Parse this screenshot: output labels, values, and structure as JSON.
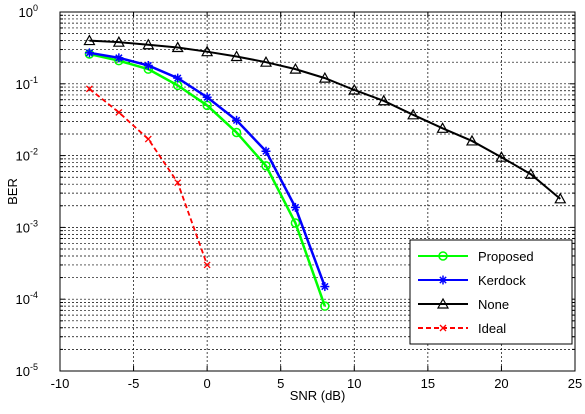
{
  "chart_data": {
    "type": "line",
    "title": "",
    "xlabel": "SNR (dB)",
    "ylabel": "BER",
    "xlim": [
      -10,
      25
    ],
    "ylim": [
      1e-05,
      1
    ],
    "yscale": "log",
    "grid": "on",
    "legend_position": "bottom-right",
    "x_ticks": [
      -10,
      -5,
      0,
      5,
      10,
      15,
      20,
      25
    ],
    "y_ticks": [
      {
        "value": 1,
        "base": "10",
        "exp": "0"
      },
      {
        "value": 0.1,
        "base": "10",
        "exp": "-1"
      },
      {
        "value": 0.01,
        "base": "10",
        "exp": "-2"
      },
      {
        "value": 0.001,
        "base": "10",
        "exp": "-3"
      },
      {
        "value": 0.0001,
        "base": "10",
        "exp": "-4"
      },
      {
        "value": 1e-05,
        "base": "10",
        "exp": "-5"
      }
    ],
    "series": [
      {
        "name": "Proposed",
        "color": "#00ff00",
        "line_style": "solid",
        "marker": "circle",
        "x": [
          -8,
          -6,
          -4,
          -2,
          0,
          2,
          4,
          6,
          8
        ],
        "y": [
          0.26,
          0.21,
          0.16,
          0.095,
          0.05,
          0.021,
          0.0072,
          0.00115,
          8e-05
        ]
      },
      {
        "name": "Kerdock",
        "color": "#0000ff",
        "line_style": "solid",
        "marker": "star",
        "x": [
          -8,
          -6,
          -4,
          -2,
          0,
          2,
          4,
          6,
          8
        ],
        "y": [
          0.27,
          0.23,
          0.18,
          0.12,
          0.065,
          0.031,
          0.0115,
          0.0019,
          0.00015
        ]
      },
      {
        "name": "None",
        "color": "#000000",
        "line_style": "solid",
        "marker": "triangle",
        "x": [
          -8,
          -6,
          -4,
          -2,
          0,
          2,
          4,
          6,
          8,
          10,
          12,
          14,
          16,
          18,
          20,
          22,
          24
        ],
        "y": [
          0.4,
          0.38,
          0.35,
          0.32,
          0.28,
          0.24,
          0.2,
          0.16,
          0.12,
          0.082,
          0.058,
          0.037,
          0.024,
          0.016,
          0.0095,
          0.0055,
          0.0025
        ]
      },
      {
        "name": "Ideal",
        "color": "#ff0000",
        "line_style": "dashed",
        "marker": "x",
        "x": [
          -8,
          -6,
          -4,
          -2,
          0
        ],
        "y": [
          0.085,
          0.04,
          0.017,
          0.0042,
          0.0003
        ]
      }
    ]
  }
}
